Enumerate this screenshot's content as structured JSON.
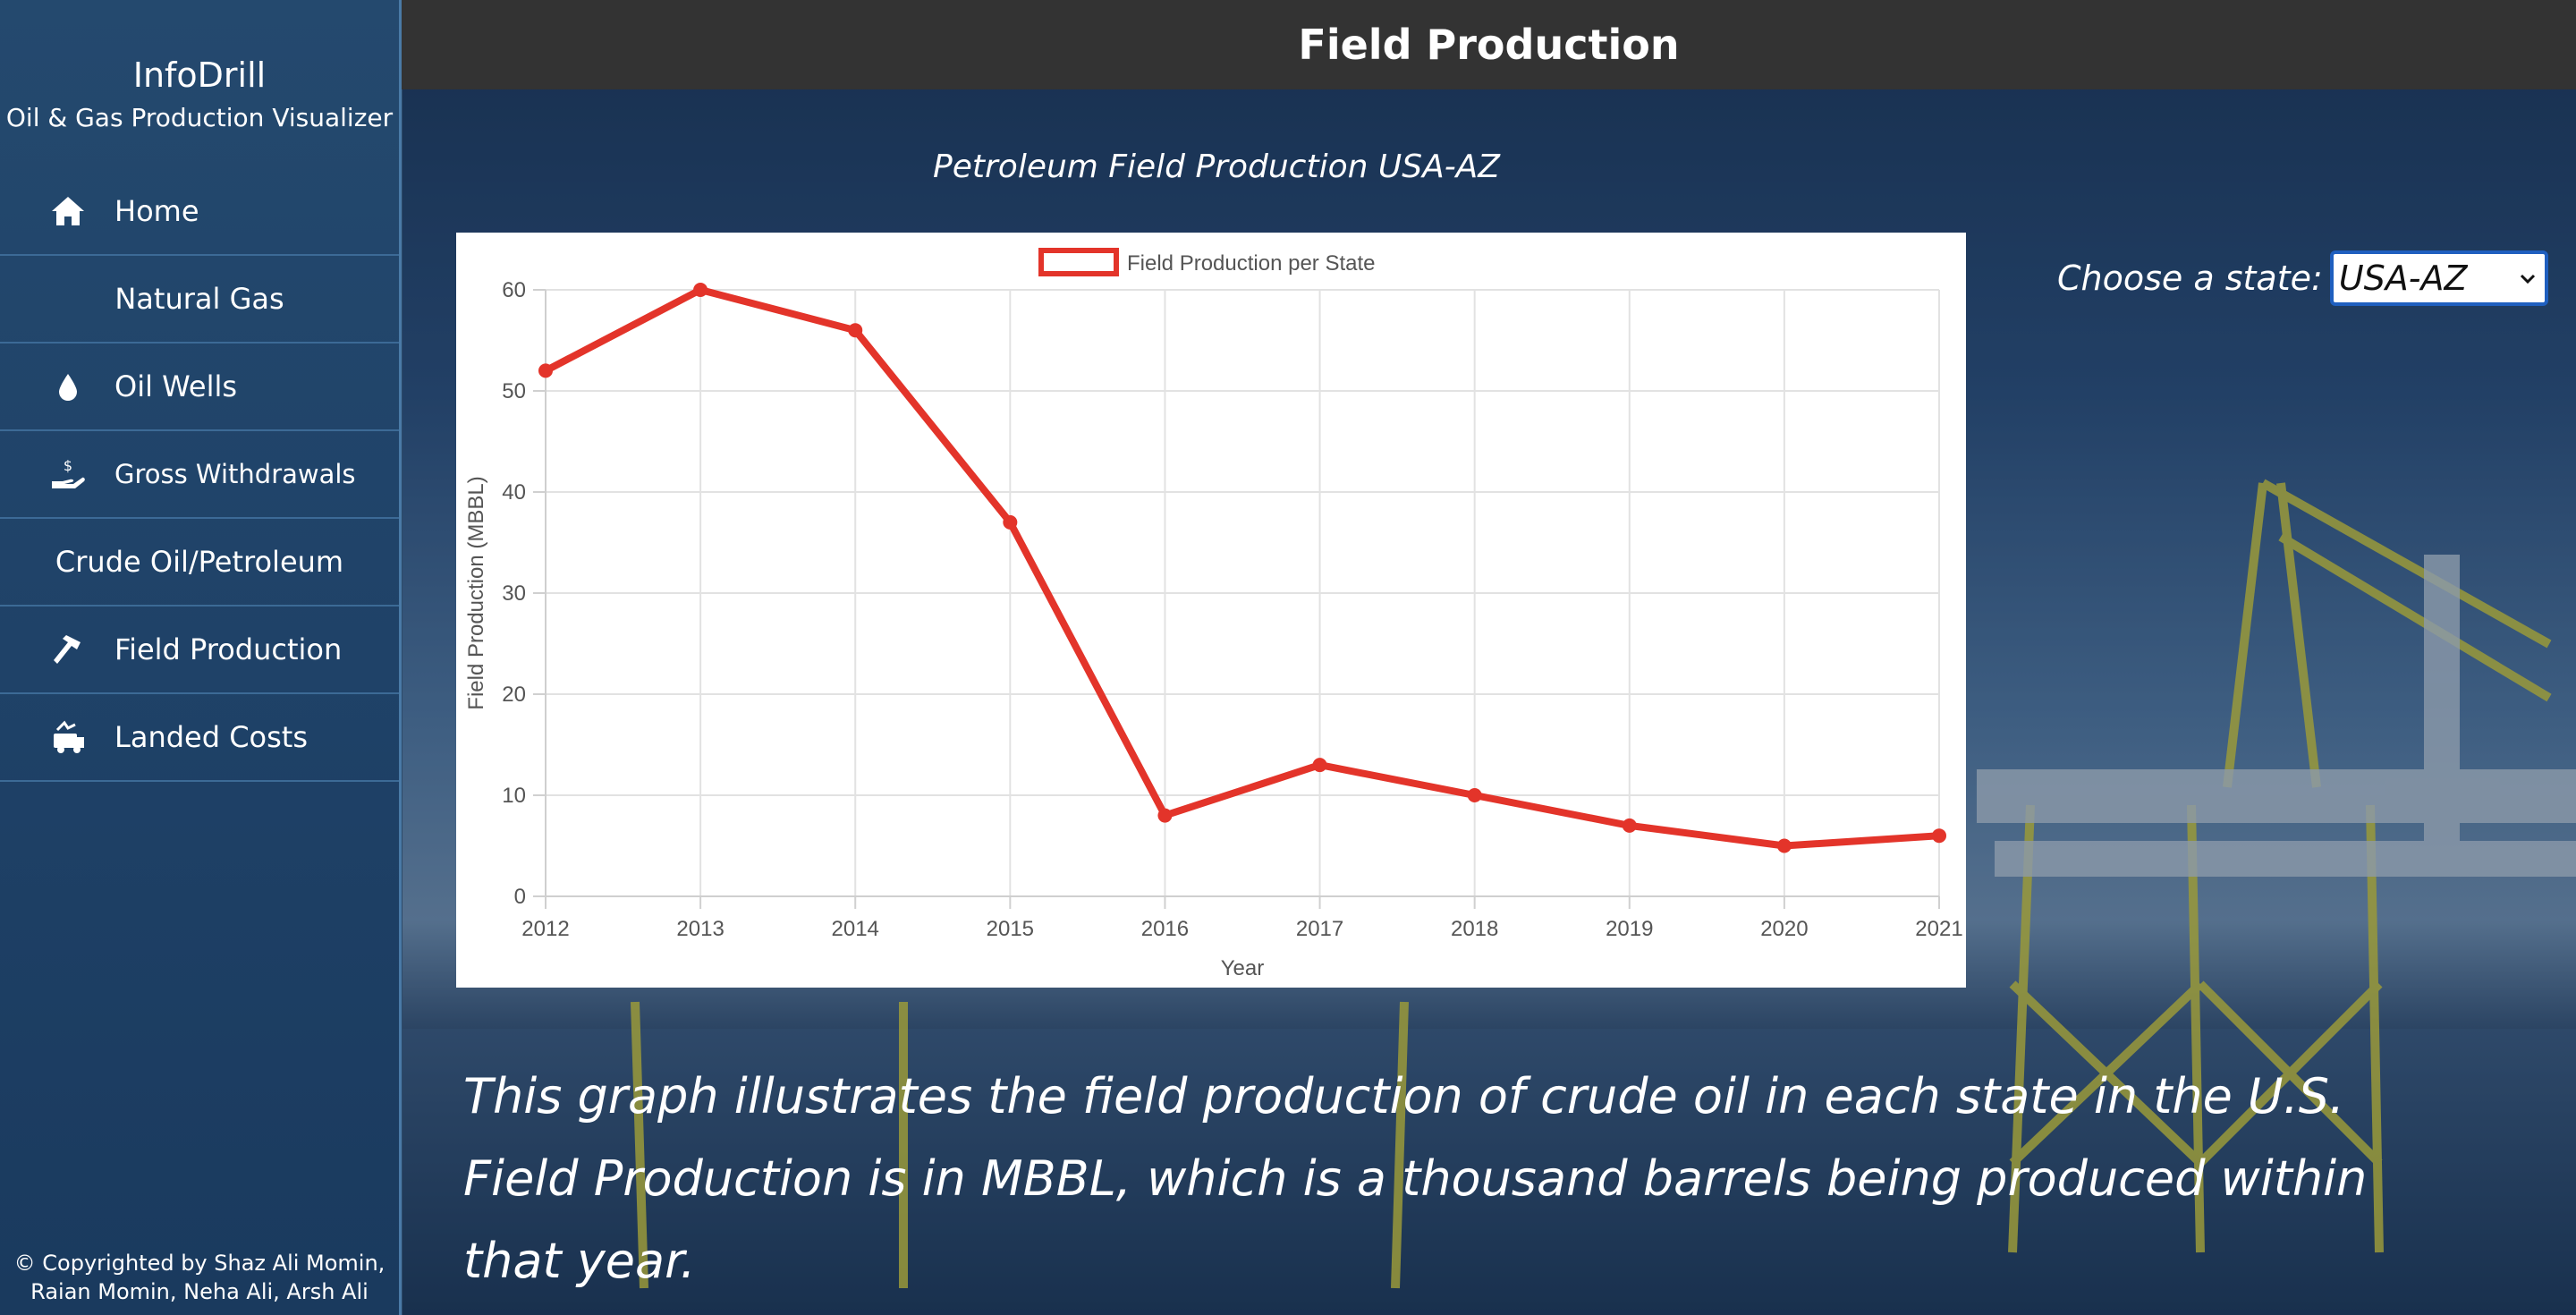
{
  "app": {
    "title": "InfoDrill",
    "subtitle": "Oil & Gas Production Visualizer"
  },
  "header": {
    "title": "Field Production"
  },
  "sidebar": {
    "items": [
      {
        "label": "Home",
        "icon": "home-icon"
      },
      {
        "section": "Natural Gas"
      },
      {
        "label": "Oil Wells",
        "icon": "droplet-icon"
      },
      {
        "label": "Gross Withdrawals",
        "icon": "hand-dollar-icon"
      },
      {
        "section": "Crude Oil/Petroleum"
      },
      {
        "label": "Field Production",
        "icon": "hammer-icon"
      },
      {
        "label": "Landed Costs",
        "icon": "cash-truck-icon"
      }
    ],
    "copyright": "© Copyrighted by Shaz Ali Momin, Raian Momin, Neha Ali, Arsh Ali"
  },
  "chart_title": "Petroleum Field Production USA-AZ",
  "state_picker": {
    "label": "Choose a state:",
    "selected": "USA-AZ"
  },
  "description": "This graph illustrates the field production of crude oil in each state in the U.S. Field Production is in MBBL, which is a thousand barrels being produced within that year.",
  "colors": {
    "sidebar": "#1f4268",
    "header": "#333333",
    "series": "#e3342a",
    "select_border": "#1f5fbf"
  },
  "chart_data": {
    "type": "line",
    "x": [
      "2012",
      "2013",
      "2014",
      "2015",
      "2016",
      "2017",
      "2018",
      "2019",
      "2020",
      "2021"
    ],
    "series": [
      {
        "name": "Field Production per State",
        "values": [
          52,
          60,
          56,
          37,
          8,
          13,
          10,
          7,
          5,
          6
        ]
      }
    ],
    "xlabel": "Year",
    "ylabel": "Field Production (MBBL)",
    "yticks": [
      "0",
      "10",
      "20",
      "30",
      "40",
      "50",
      "60"
    ],
    "ylim": [
      0,
      60
    ],
    "grid": true,
    "legend": "top-center"
  }
}
